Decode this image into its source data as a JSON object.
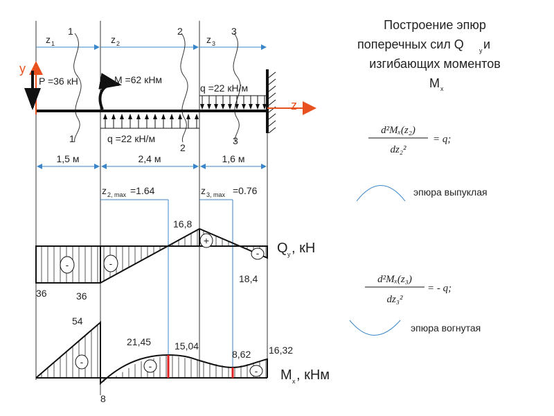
{
  "title": {
    "line1": "Построение эпюр",
    "line2": "поперечных сил Q",
    "line2_sub": "y",
    "line2_end": " и",
    "line3": "изгибающих моментов",
    "line4": "M",
    "line4_sub": "x"
  },
  "beam": {
    "z1": {
      "main": "z",
      "sub": "1"
    },
    "z2": {
      "main": "z",
      "sub": "2"
    },
    "z3": {
      "main": "z",
      "sub": "3"
    },
    "sections_top": [
      "1",
      "2",
      "3"
    ],
    "sections_bottom": [
      "1",
      "2",
      "3"
    ],
    "y_axis": "y",
    "z_axis": "z",
    "force": "P =36 кН",
    "moment": "M =62 кНм",
    "load_right": "q =22 кН/м",
    "load_middle": "q =22 кН/м",
    "dimensions": [
      "1,5 м",
      "2,4 м",
      "1,6 м"
    ]
  },
  "extrema": [
    {
      "main": "z",
      "sub": "2, max",
      "value": "=1.64"
    },
    {
      "main": "z",
      "sub": "3, max",
      "value": "=0.76"
    }
  ],
  "shear": {
    "label": "Q",
    "label_sub": "y",
    "label_unit": ", кН",
    "values": [
      "16,8",
      "36",
      "36",
      "18,4"
    ],
    "signs": [
      "-",
      "-",
      "+",
      "-"
    ]
  },
  "moment": {
    "label": "M",
    "label_sub": "x",
    "label_unit": ", кНм",
    "values": [
      "54",
      "21,45",
      "15,04",
      "8,62",
      "16,32",
      "8"
    ],
    "signs": [
      "-",
      "-",
      "-"
    ]
  },
  "formulas": [
    {
      "numerator": "d²Mₓ(z₂)",
      "denominator": "dz₂²",
      "rhs": "= q;"
    },
    {
      "numerator": "d²Mₓ(z₃)",
      "denominator": "dz₃²",
      "rhs": "= -  q;"
    }
  ],
  "notes": [
    "эпюра выпуклая",
    "эпюра вогнутая"
  ]
}
